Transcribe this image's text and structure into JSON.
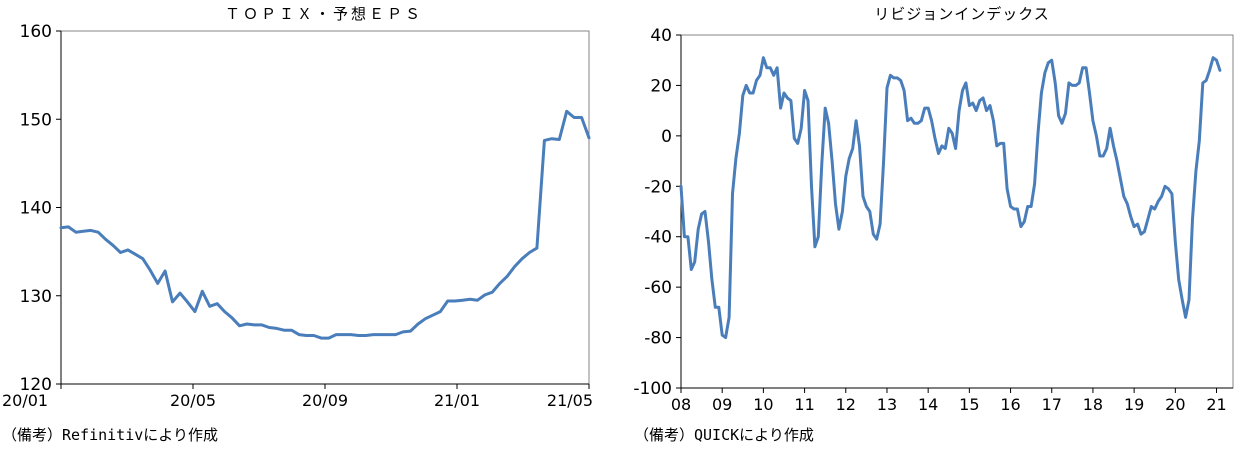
{
  "chart_data": [
    {
      "type": "line",
      "title": "ＴＯＰＩＸ・予想ＥＰＳ",
      "xlabel": "",
      "ylabel": "",
      "ylim": [
        120,
        160
      ],
      "yticks": [
        "160",
        "150",
        "140",
        "130",
        "120"
      ],
      "xticks": [
        "20/01",
        "20/05",
        "20/09",
        "21/01",
        "21/05"
      ],
      "xrange": [
        0,
        69
      ],
      "grid": false,
      "legend": "none",
      "color": "#4a7ebb",
      "source": "（備考）Refinitivにより作成",
      "series": [
        {
          "values": [
            137.7,
            137.8,
            137.2,
            137.3,
            137.4,
            137.2,
            136.4,
            135.7,
            134.9,
            135.2,
            134.7,
            134.2,
            132.9,
            131.4,
            132.8,
            129.3,
            130.3,
            129.3,
            128.2,
            130.5,
            128.8,
            129.1,
            128.2,
            127.5,
            126.6,
            126.8,
            126.7,
            126.7,
            126.4,
            126.3,
            126.1,
            126.1,
            125.6,
            125.5,
            125.5,
            125.2,
            125.2,
            125.6,
            125.6,
            125.6,
            125.5,
            125.5,
            125.6,
            125.6,
            125.6,
            125.6,
            125.9,
            126.0,
            126.8,
            127.4,
            127.8,
            128.2,
            129.4,
            129.4,
            129.5,
            129.6,
            129.5,
            130.1,
            130.4,
            131.4,
            132.2,
            133.3,
            134.2,
            134.9,
            135.4,
            147.6,
            147.8,
            147.7,
            150.9,
            150.2,
            150.2,
            147.9
          ]
        }
      ]
    },
    {
      "type": "line",
      "title": "リビジョンインデックス",
      "xlabel": "",
      "ylabel": "",
      "ylim": [
        -100,
        40
      ],
      "yticks": [
        "40",
        "20",
        "0",
        "-20",
        "-40",
        "-60",
        "-80",
        "-100"
      ],
      "xticks": [
        "08",
        "09",
        "10",
        "11",
        "12",
        "13",
        "14",
        "15",
        "16",
        "17",
        "18",
        "19",
        "20",
        "21"
      ],
      "xrange": [
        2008,
        2021.4
      ],
      "grid": false,
      "legend": "none",
      "color": "#4a7ebb",
      "source": "（備考）QUICKにより作成",
      "series": [
        {
          "points": [
            [
              2008.0,
              -20
            ],
            [
              2008.083,
              -40
            ],
            [
              2008.167,
              -40
            ],
            [
              2008.25,
              -53
            ],
            [
              2008.333,
              -50
            ],
            [
              2008.417,
              -37
            ],
            [
              2008.5,
              -31
            ],
            [
              2008.583,
              -30
            ],
            [
              2008.667,
              -42
            ],
            [
              2008.75,
              -57
            ],
            [
              2008.833,
              -68
            ],
            [
              2008.917,
              -68
            ],
            [
              2009.0,
              -79
            ],
            [
              2009.083,
              -80
            ],
            [
              2009.167,
              -72
            ],
            [
              2009.25,
              -23
            ],
            [
              2009.333,
              -9
            ],
            [
              2009.417,
              1
            ],
            [
              2009.5,
              16
            ],
            [
              2009.583,
              20
            ],
            [
              2009.667,
              17
            ],
            [
              2009.75,
              17
            ],
            [
              2009.833,
              22
            ],
            [
              2009.917,
              24
            ],
            [
              2010.0,
              31
            ],
            [
              2010.083,
              27
            ],
            [
              2010.167,
              27
            ],
            [
              2010.25,
              24
            ],
            [
              2010.333,
              27
            ],
            [
              2010.417,
              11
            ],
            [
              2010.5,
              17
            ],
            [
              2010.583,
              15
            ],
            [
              2010.667,
              14
            ],
            [
              2010.75,
              -1
            ],
            [
              2010.833,
              -3
            ],
            [
              2010.917,
              3
            ],
            [
              2011.0,
              18
            ],
            [
              2011.083,
              14
            ],
            [
              2011.167,
              -20
            ],
            [
              2011.25,
              -44
            ],
            [
              2011.333,
              -40
            ],
            [
              2011.417,
              -11
            ],
            [
              2011.5,
              11
            ],
            [
              2011.583,
              5
            ],
            [
              2011.667,
              -10
            ],
            [
              2011.75,
              -27
            ],
            [
              2011.833,
              -37
            ],
            [
              2011.917,
              -30
            ],
            [
              2012.0,
              -16
            ],
            [
              2012.083,
              -9
            ],
            [
              2012.167,
              -5
            ],
            [
              2012.25,
              6
            ],
            [
              2012.333,
              -4
            ],
            [
              2012.417,
              -24
            ],
            [
              2012.5,
              -28
            ],
            [
              2012.583,
              -30
            ],
            [
              2012.667,
              -39
            ],
            [
              2012.75,
              -41
            ],
            [
              2012.833,
              -35
            ],
            [
              2012.917,
              -10
            ],
            [
              2013.0,
              19
            ],
            [
              2013.083,
              24
            ],
            [
              2013.167,
              23
            ],
            [
              2013.25,
              23
            ],
            [
              2013.333,
              22
            ],
            [
              2013.417,
              18
            ],
            [
              2013.5,
              6
            ],
            [
              2013.583,
              7
            ],
            [
              2013.667,
              5
            ],
            [
              2013.75,
              5
            ],
            [
              2013.833,
              6
            ],
            [
              2013.917,
              11
            ],
            [
              2014.0,
              11
            ],
            [
              2014.083,
              6
            ],
            [
              2014.167,
              -1
            ],
            [
              2014.25,
              -7
            ],
            [
              2014.333,
              -4
            ],
            [
              2014.417,
              -5
            ],
            [
              2014.5,
              3
            ],
            [
              2014.583,
              1
            ],
            [
              2014.667,
              -5
            ],
            [
              2014.75,
              10
            ],
            [
              2014.833,
              18
            ],
            [
              2014.917,
              21
            ],
            [
              2015.0,
              12
            ],
            [
              2015.083,
              13
            ],
            [
              2015.167,
              10
            ],
            [
              2015.25,
              14
            ],
            [
              2015.333,
              15
            ],
            [
              2015.417,
              10
            ],
            [
              2015.5,
              12
            ],
            [
              2015.583,
              6
            ],
            [
              2015.667,
              -4
            ],
            [
              2015.75,
              -3
            ],
            [
              2015.833,
              -3
            ],
            [
              2015.917,
              -21
            ],
            [
              2016.0,
              -28
            ],
            [
              2016.083,
              -29
            ],
            [
              2016.167,
              -29
            ],
            [
              2016.25,
              -36
            ],
            [
              2016.333,
              -34
            ],
            [
              2016.417,
              -28
            ],
            [
              2016.5,
              -28
            ],
            [
              2016.583,
              -19
            ],
            [
              2016.667,
              1
            ],
            [
              2016.75,
              17
            ],
            [
              2016.833,
              25
            ],
            [
              2016.917,
              29
            ],
            [
              2017.0,
              30
            ],
            [
              2017.083,
              21
            ],
            [
              2017.167,
              8
            ],
            [
              2017.25,
              5
            ],
            [
              2017.333,
              9
            ],
            [
              2017.417,
              21
            ],
            [
              2017.5,
              20
            ],
            [
              2017.583,
              20
            ],
            [
              2017.667,
              21
            ],
            [
              2017.75,
              27
            ],
            [
              2017.833,
              27
            ],
            [
              2017.917,
              17
            ],
            [
              2018.0,
              6
            ],
            [
              2018.083,
              0
            ],
            [
              2018.167,
              -8
            ],
            [
              2018.25,
              -8
            ],
            [
              2018.333,
              -5
            ],
            [
              2018.417,
              3
            ],
            [
              2018.5,
              -4
            ],
            [
              2018.583,
              -10
            ],
            [
              2018.667,
              -17
            ],
            [
              2018.75,
              -24
            ],
            [
              2018.833,
              -27
            ],
            [
              2018.917,
              -32
            ],
            [
              2019.0,
              -36
            ],
            [
              2019.083,
              -35
            ],
            [
              2019.167,
              -39
            ],
            [
              2019.25,
              -38
            ],
            [
              2019.333,
              -33
            ],
            [
              2019.417,
              -28
            ],
            [
              2019.5,
              -29
            ],
            [
              2019.583,
              -26
            ],
            [
              2019.667,
              -24
            ],
            [
              2019.75,
              -20
            ],
            [
              2019.833,
              -21
            ],
            [
              2019.917,
              -23
            ],
            [
              2020.0,
              -42
            ],
            [
              2020.083,
              -57
            ],
            [
              2020.167,
              -65
            ],
            [
              2020.25,
              -72
            ],
            [
              2020.333,
              -65
            ],
            [
              2020.417,
              -33
            ],
            [
              2020.5,
              -14
            ],
            [
              2020.583,
              -2
            ],
            [
              2020.667,
              21
            ],
            [
              2020.75,
              22
            ],
            [
              2020.833,
              26
            ],
            [
              2020.917,
              31
            ],
            [
              2021.0,
              30
            ],
            [
              2021.083,
              26
            ]
          ]
        }
      ]
    }
  ]
}
